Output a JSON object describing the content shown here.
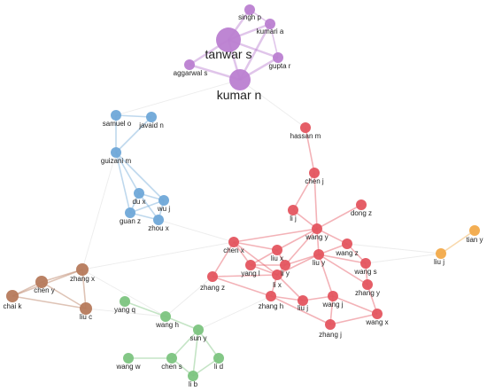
{
  "colors": {
    "purple": "#bb7fd1",
    "blue": "#6fa8d8",
    "brown": "#b67a5c",
    "green": "#7cc47f",
    "red": "#e4555f",
    "orange": "#f2aa4a",
    "edge": "#c9c9c9"
  },
  "network": {
    "nodes": [
      {
        "id": "tanwar-s",
        "label": "tanwar s",
        "cluster": "purple"
      },
      {
        "id": "kumar-n",
        "label": "kumar n",
        "cluster": "purple"
      },
      {
        "id": "singh-p",
        "label": "singh p",
        "cluster": "purple"
      },
      {
        "id": "kumari-a",
        "label": "kumari a",
        "cluster": "purple"
      },
      {
        "id": "gupta-r",
        "label": "gupta r",
        "cluster": "purple"
      },
      {
        "id": "aggarwal-s",
        "label": "aggarwal s",
        "cluster": "purple"
      },
      {
        "id": "samuel-o",
        "label": "samuel o",
        "cluster": "blue"
      },
      {
        "id": "javaid-n",
        "label": "javaid n",
        "cluster": "blue"
      },
      {
        "id": "guizani-m",
        "label": "guizani m",
        "cluster": "blue"
      },
      {
        "id": "du-x",
        "label": "du x",
        "cluster": "blue"
      },
      {
        "id": "wu-j",
        "label": "wu j",
        "cluster": "blue"
      },
      {
        "id": "guan-z",
        "label": "guan z",
        "cluster": "blue"
      },
      {
        "id": "zhou-x",
        "label": "zhou x",
        "cluster": "blue"
      },
      {
        "id": "zhang-x",
        "label": "zhang x",
        "cluster": "brown"
      },
      {
        "id": "chen-y",
        "label": "chen y",
        "cluster": "brown"
      },
      {
        "id": "chai-k",
        "label": "chai k",
        "cluster": "brown"
      },
      {
        "id": "liu-c",
        "label": "liu c",
        "cluster": "brown"
      },
      {
        "id": "yang-q",
        "label": "yang q",
        "cluster": "green"
      },
      {
        "id": "wang-h",
        "label": "wang h",
        "cluster": "green"
      },
      {
        "id": "sun-y",
        "label": "sun y",
        "cluster": "green"
      },
      {
        "id": "wang-w",
        "label": "wang w",
        "cluster": "green"
      },
      {
        "id": "chen-s",
        "label": "chen s",
        "cluster": "green"
      },
      {
        "id": "li-d",
        "label": "li d",
        "cluster": "green"
      },
      {
        "id": "li-b",
        "label": "li b",
        "cluster": "green"
      },
      {
        "id": "hassan-m",
        "label": "hassan m",
        "cluster": "red"
      },
      {
        "id": "chen-j",
        "label": "chen j",
        "cluster": "red"
      },
      {
        "id": "li-j",
        "label": "li j",
        "cluster": "red"
      },
      {
        "id": "dong-z",
        "label": "dong z",
        "cluster": "red"
      },
      {
        "id": "wang-y",
        "label": "wang y",
        "cluster": "red"
      },
      {
        "id": "chen-x",
        "label": "chen x",
        "cluster": "red"
      },
      {
        "id": "liu-x",
        "label": "liu x",
        "cluster": "red"
      },
      {
        "id": "wang-z",
        "label": "wang z",
        "cluster": "red"
      },
      {
        "id": "yang-l",
        "label": "yang l",
        "cluster": "red"
      },
      {
        "id": "li-y",
        "label": "li y",
        "cluster": "red"
      },
      {
        "id": "liu-y",
        "label": "liu y",
        "cluster": "red"
      },
      {
        "id": "wang-s",
        "label": "wang s",
        "cluster": "red"
      },
      {
        "id": "zhang-z",
        "label": "zhang z",
        "cluster": "red"
      },
      {
        "id": "li-x",
        "label": "li x",
        "cluster": "red"
      },
      {
        "id": "zhang-y",
        "label": "zhang y",
        "cluster": "red"
      },
      {
        "id": "zhang-h",
        "label": "zhang h",
        "cluster": "red"
      },
      {
        "id": "liu-j",
        "label": "liu j",
        "cluster": "red"
      },
      {
        "id": "wang-j",
        "label": "wang j",
        "cluster": "red"
      },
      {
        "id": "wang-x",
        "label": "wang x",
        "cluster": "red"
      },
      {
        "id": "zhang-j",
        "label": "zhang j",
        "cluster": "red"
      },
      {
        "id": "tian-y",
        "label": "tian y",
        "cluster": "orange"
      },
      {
        "id": "liu-j-2",
        "label": "liu j",
        "cluster": "orange"
      }
    ],
    "edges": [
      [
        "tanwar-s",
        "kumar-n"
      ],
      [
        "tanwar-s",
        "singh-p"
      ],
      [
        "tanwar-s",
        "kumari-a"
      ],
      [
        "tanwar-s",
        "gupta-r"
      ],
      [
        "tanwar-s",
        "aggarwal-s"
      ],
      [
        "kumar-n",
        "gupta-r"
      ],
      [
        "kumar-n",
        "kumari-a"
      ],
      [
        "kumar-n",
        "aggarwal-s"
      ],
      [
        "singh-p",
        "kumari-a"
      ],
      [
        "kumari-a",
        "gupta-r"
      ],
      [
        "kumar-n",
        "hassan-m"
      ],
      [
        "kumar-n",
        "samuel-o"
      ],
      [
        "samuel-o",
        "javaid-n"
      ],
      [
        "samuel-o",
        "guizani-m"
      ],
      [
        "javaid-n",
        "guizani-m"
      ],
      [
        "guizani-m",
        "du-x"
      ],
      [
        "guizani-m",
        "wu-j"
      ],
      [
        "guizani-m",
        "guan-z"
      ],
      [
        "du-x",
        "wu-j"
      ],
      [
        "du-x",
        "guan-z"
      ],
      [
        "wu-j",
        "guan-z"
      ],
      [
        "wu-j",
        "zhou-x"
      ],
      [
        "guan-z",
        "zhou-x"
      ],
      [
        "du-x",
        "zhou-x"
      ],
      [
        "guizani-m",
        "zhang-x"
      ],
      [
        "zhou-x",
        "chen-x"
      ],
      [
        "zhang-x",
        "chen-y"
      ],
      [
        "zhang-x",
        "chai-k"
      ],
      [
        "zhang-x",
        "liu-c"
      ],
      [
        "chen-y",
        "chai-k"
      ],
      [
        "chen-y",
        "liu-c"
      ],
      [
        "chai-k",
        "liu-c"
      ],
      [
        "zhang-x",
        "wang-h"
      ],
      [
        "zhang-x",
        "chen-x"
      ],
      [
        "liu-c",
        "wang-h"
      ],
      [
        "yang-q",
        "wang-h"
      ],
      [
        "wang-h",
        "sun-y"
      ],
      [
        "sun-y",
        "chen-s"
      ],
      [
        "sun-y",
        "li-d"
      ],
      [
        "chen-s",
        "li-b"
      ],
      [
        "li-d",
        "li-b"
      ],
      [
        "wang-w",
        "chen-s"
      ],
      [
        "sun-y",
        "li-b"
      ],
      [
        "wang-h",
        "zhang-z"
      ],
      [
        "sun-y",
        "zhang-h"
      ],
      [
        "hassan-m",
        "chen-j"
      ],
      [
        "chen-j",
        "li-j"
      ],
      [
        "chen-j",
        "wang-y"
      ],
      [
        "li-j",
        "wang-y"
      ],
      [
        "dong-z",
        "wang-y"
      ],
      [
        "wang-y",
        "liu-x"
      ],
      [
        "wang-y",
        "chen-x"
      ],
      [
        "wang-y",
        "wang-z"
      ],
      [
        "wang-y",
        "li-y"
      ],
      [
        "chen-x",
        "liu-x"
      ],
      [
        "chen-x",
        "yang-l"
      ],
      [
        "chen-x",
        "zhang-z"
      ],
      [
        "liu-x",
        "li-y"
      ],
      [
        "liu-x",
        "yang-l"
      ],
      [
        "li-y",
        "yang-l"
      ],
      [
        "li-y",
        "li-x"
      ],
      [
        "yang-l",
        "li-x"
      ],
      [
        "liu-y",
        "wang-z"
      ],
      [
        "liu-y",
        "wang-s"
      ],
      [
        "wang-z",
        "wang-s"
      ],
      [
        "liu-y",
        "li-y"
      ],
      [
        "zhang-z",
        "li-x"
      ],
      [
        "zhang-z",
        "zhang-h"
      ],
      [
        "zhang-h",
        "li-x"
      ],
      [
        "zhang-h",
        "liu-j"
      ],
      [
        "liu-j",
        "wang-j"
      ],
      [
        "liu-j",
        "li-x"
      ],
      [
        "wang-j",
        "zhang-j"
      ],
      [
        "wang-j",
        "wang-x"
      ],
      [
        "zhang-j",
        "wang-x"
      ],
      [
        "zhang-y",
        "wang-s"
      ],
      [
        "zhang-y",
        "liu-y"
      ],
      [
        "zhang-y",
        "wang-x"
      ],
      [
        "liu-y",
        "wang-j"
      ],
      [
        "zhang-h",
        "zhang-j"
      ],
      [
        "li-x",
        "liu-y"
      ],
      [
        "chen-x",
        "li-x"
      ],
      [
        "wang-y",
        "liu-y"
      ],
      [
        "tian-y",
        "liu-j-2"
      ],
      [
        "liu-j-2",
        "wang-s"
      ],
      [
        "liu-j-2",
        "wang-z"
      ]
    ]
  }
}
